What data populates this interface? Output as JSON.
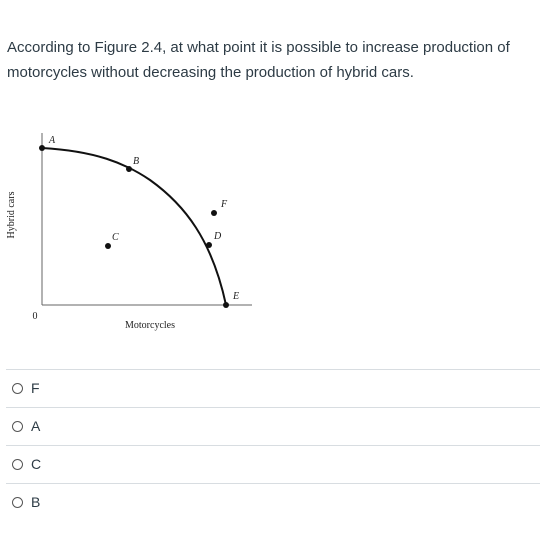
{
  "question": "According to Figure 2.4, at what point it is possible to increase production of motorcycles without decreasing the production of hybrid cars.",
  "figure": {
    "y_label": "Hybrid cars",
    "x_label": "Motorcycles",
    "origin": "0",
    "points": [
      "A",
      "B",
      "C",
      "D",
      "E",
      "F"
    ]
  },
  "options": [
    "F",
    "A",
    "C",
    "B"
  ]
}
